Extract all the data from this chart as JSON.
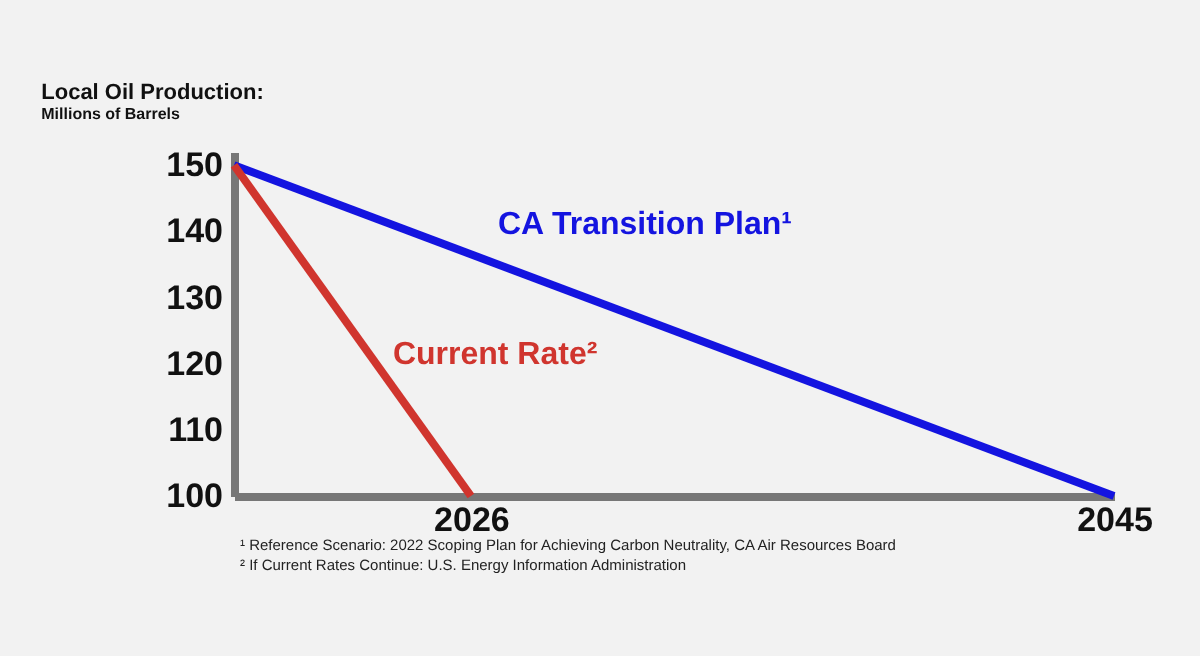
{
  "chart_data": {
    "type": "line",
    "title": "Local Oil Production:",
    "subtitle": "Millions of Barrels",
    "series": [
      {
        "name": "CA Transition Plan¹",
        "color": "#1414e0",
        "x": [
          2019,
          2045
        ],
        "values": [
          150,
          100
        ]
      },
      {
        "name": "Current Rate²",
        "color": "#d0352e",
        "x": [
          2019,
          2026
        ],
        "values": [
          150,
          100
        ]
      }
    ],
    "xlim": [
      2019,
      2045
    ],
    "xticks": [
      2026,
      2045
    ],
    "ylim": [
      100,
      152
    ],
    "yticks": [
      100,
      110,
      120,
      130,
      140,
      150
    ],
    "grid": false,
    "marker": "none",
    "line_style": "solid",
    "annotations": [
      "¹ Reference Scenario: 2022 Scoping Plan for Achieving Carbon Neutrality, CA Air Resources Board",
      "² If Current Rates Continue: U.S. Energy Information Administration"
    ]
  }
}
